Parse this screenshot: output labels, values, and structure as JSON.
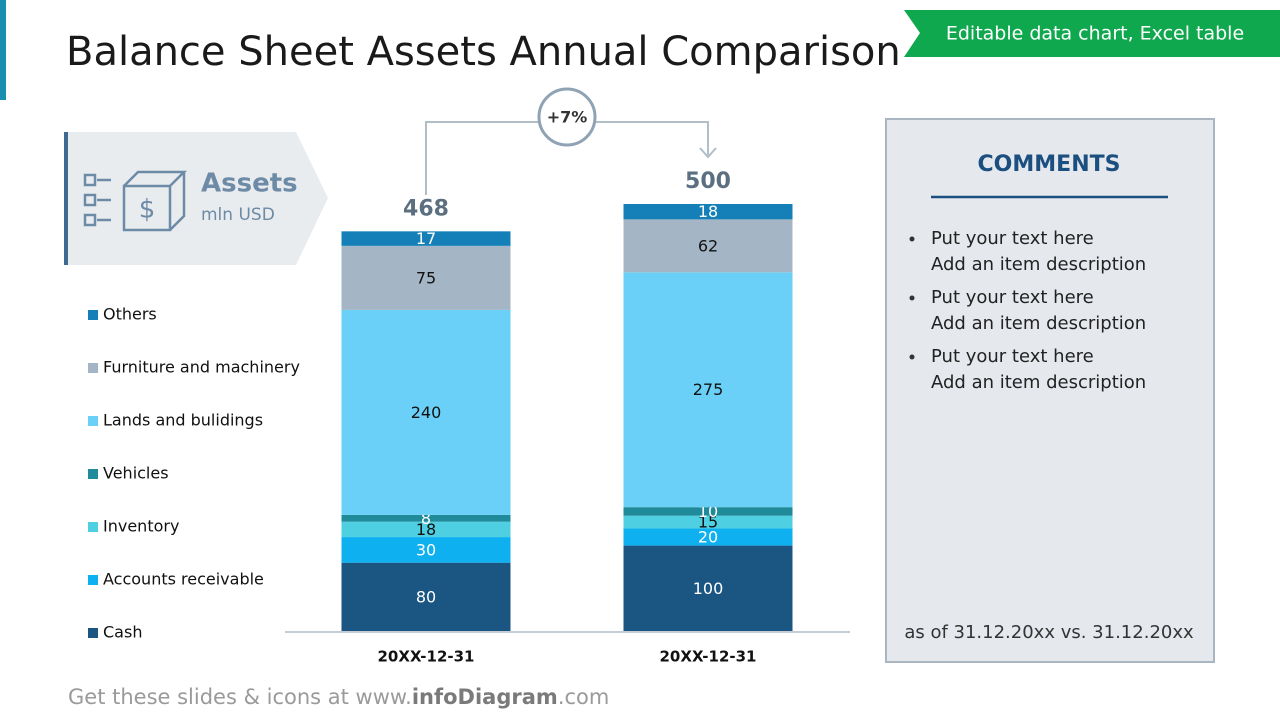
{
  "title": "Balance Sheet Assets Annual Comparison",
  "badge": "Editable data chart, Excel table",
  "panel": {
    "title": "Assets",
    "subtitle": "mln USD"
  },
  "chart_data": {
    "type": "stacked_bar",
    "categories": [
      "20XX-12-31",
      "20XX-12-31"
    ],
    "totals": [
      468,
      500
    ],
    "change_label": "+7%",
    "series": [
      {
        "name": "Cash",
        "color": "#1b5582",
        "values": [
          80,
          100
        ]
      },
      {
        "name": "Accounts receivable",
        "color": "#0fb0ef",
        "values": [
          30,
          20
        ]
      },
      {
        "name": "Inventory",
        "color": "#4fd0e2",
        "values": [
          18,
          15
        ]
      },
      {
        "name": "Vehicles",
        "color": "#1f8a9a",
        "values": [
          8,
          10
        ]
      },
      {
        "name": "Lands and bulidings",
        "color": "#6bd0f7",
        "values": [
          240,
          275
        ]
      },
      {
        "name": "Furniture and machinery",
        "color": "#a4b6c5",
        "values": [
          75,
          62
        ]
      },
      {
        "name": "Others",
        "color": "#1580b8",
        "values": [
          17,
          18
        ]
      }
    ]
  },
  "comments": {
    "title": "COMMENTS",
    "items": [
      [
        "Put your text here",
        "Add an item description"
      ],
      [
        "Put your text here",
        "Add an item description"
      ],
      [
        "Put your text here",
        "Add an item description"
      ]
    ],
    "footnote": "as of 31.12.20xx vs. 31.12.20xx"
  },
  "footer": {
    "prefix": "Get these slides & icons at www.",
    "brand": "infoDiagram",
    "suffix": ".com"
  }
}
